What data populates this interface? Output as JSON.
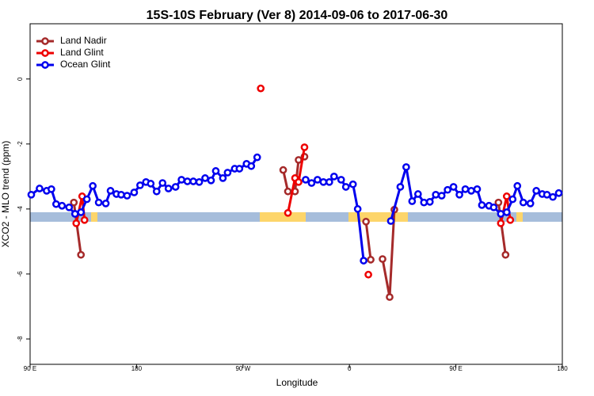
{
  "chart_data": {
    "type": "line",
    "title": "15S-10S February (Ver 8)   2014-09-06 to 2017-06-30",
    "x_label": "Longitude",
    "y_label": "XCO2 - MLO trend (ppm)",
    "xlim": [
      90,
      540
    ],
    "ylim": [
      -8.78,
      1.7
    ],
    "xticks": [
      {
        "value": 90,
        "label": "90 E"
      },
      {
        "value": 180,
        "label": "180"
      },
      {
        "value": 270,
        "label": "90 W"
      },
      {
        "value": 360,
        "label": "0"
      },
      {
        "value": 450,
        "label": "90 E"
      },
      {
        "value": 540,
        "label": "180"
      }
    ],
    "yticks": [
      0,
      -2,
      -4,
      -6,
      -8
    ],
    "legend": "top-left",
    "series": [
      {
        "name": "Land Nadir",
        "color": "#a52a2a",
        "x": [
          127,
          133,
          null,
          304,
          308,
          314,
          317,
          322,
          null,
          374,
          378,
          null,
          388,
          394,
          398,
          null,
          486,
          492
        ],
        "values": [
          -3.8,
          -5.41,
          null,
          -2.8,
          -3.46,
          -3.46,
          -2.49,
          -2.39,
          null,
          -4.39,
          -5.56,
          null,
          -5.54,
          -6.71,
          -4.02,
          null,
          -3.8,
          -5.41
        ]
      },
      {
        "name": "Land Glint",
        "color": "#ee0000",
        "x": [
          129,
          134,
          136,
          null,
          285,
          null,
          308,
          314,
          317,
          322,
          null,
          376,
          null,
          488,
          493,
          496
        ],
        "values": [
          -4.44,
          -3.61,
          -4.34,
          null,
          -0.29,
          null,
          -4.12,
          -3.05,
          -3.17,
          -2.1,
          null,
          -6.02,
          null,
          -4.44,
          -3.61,
          -4.34
        ]
      },
      {
        "name": "Ocean Glint",
        "color": "#0000ee",
        "x": [
          91,
          98,
          104,
          108,
          112,
          117,
          123,
          128,
          133,
          138,
          143,
          148,
          154,
          158,
          163,
          167,
          172,
          178,
          183,
          188,
          192,
          197,
          202,
          207,
          213,
          218,
          223,
          228,
          233,
          238,
          243,
          247,
          253,
          257,
          263,
          267,
          273,
          277,
          282,
          null,
          323,
          328,
          333,
          338,
          343,
          347,
          353,
          357,
          363,
          367,
          372,
          null,
          395,
          403,
          408,
          413,
          418,
          423,
          428,
          433,
          438,
          443,
          448,
          453,
          458,
          463,
          468,
          472,
          478,
          482,
          488,
          493,
          498,
          502,
          507,
          513,
          518,
          523,
          527,
          532,
          537
        ],
        "values": [
          -3.56,
          -3.37,
          -3.44,
          -3.39,
          -3.85,
          -3.9,
          -3.95,
          -4.15,
          -4.1,
          -3.7,
          -3.29,
          -3.8,
          -3.83,
          -3.44,
          -3.54,
          -3.56,
          -3.59,
          -3.49,
          -3.27,
          -3.17,
          -3.22,
          -3.46,
          -3.2,
          -3.37,
          -3.32,
          -3.1,
          -3.15,
          -3.15,
          -3.17,
          -3.05,
          -3.12,
          -2.83,
          -3.05,
          -2.88,
          -2.76,
          -2.76,
          -2.61,
          -2.68,
          -2.41,
          null,
          -3.1,
          -3.2,
          -3.1,
          -3.17,
          -3.17,
          -3.0,
          -3.1,
          -3.32,
          -3.24,
          -4.0,
          -5.59,
          null,
          -4.37,
          -3.32,
          -2.71,
          -3.76,
          -3.54,
          -3.8,
          -3.78,
          -3.56,
          -3.59,
          -3.41,
          -3.32,
          -3.56,
          -3.39,
          -3.44,
          -3.39,
          -3.88,
          -3.9,
          -3.95,
          -4.15,
          -4.1,
          -3.7,
          -3.29,
          -3.8,
          -3.83,
          -3.44,
          -3.54,
          -3.56,
          -3.63,
          -3.51
        ]
      }
    ]
  }
}
